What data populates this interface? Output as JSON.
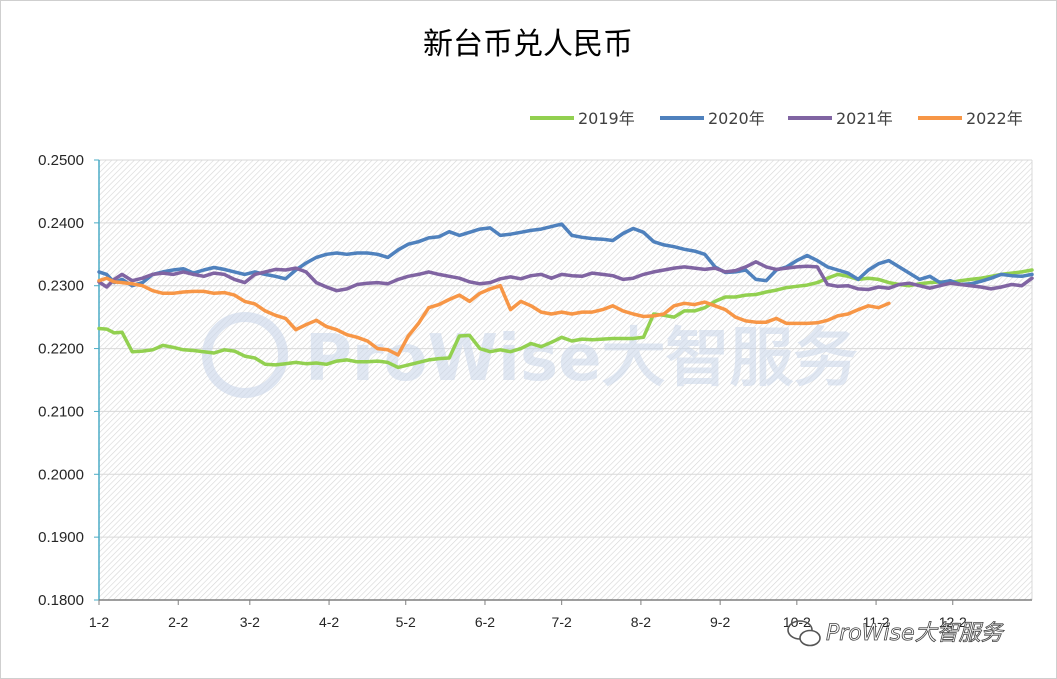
{
  "chart_data": {
    "type": "line",
    "title": "新台币兑人民币",
    "xlabel": "",
    "ylabel": "",
    "ylim": [
      0.18,
      0.25
    ],
    "yticks": [
      "0.2500",
      "0.2400",
      "0.2300",
      "0.2200",
      "0.2100",
      "0.2000",
      "0.1900",
      "0.1800"
    ],
    "ytick_values": [
      0.25,
      0.24,
      0.23,
      0.22,
      0.21,
      0.2,
      0.19,
      0.18
    ],
    "xticks": [
      "1-2",
      "2-2",
      "3-2",
      "4-2",
      "5-2",
      "6-2",
      "7-2",
      "8-2",
      "9-2",
      "10-2",
      "11-2",
      "12-2"
    ],
    "xtick_days": [
      1,
      32,
      60,
      91,
      121,
      152,
      182,
      213,
      244,
      274,
      305,
      335
    ],
    "xlim_days": [
      1,
      366
    ],
    "legend_position": "top-right",
    "grid": true,
    "series": [
      {
        "name": "2019年",
        "color": "#92d050",
        "x": [
          1,
          4,
          7,
          10,
          14,
          18,
          22,
          26,
          30,
          34,
          38,
          42,
          46,
          50,
          54,
          58,
          62,
          66,
          70,
          74,
          78,
          82,
          86,
          90,
          94,
          98,
          102,
          106,
          110,
          114,
          118,
          122,
          126,
          130,
          134,
          138,
          142,
          146,
          150,
          154,
          158,
          162,
          166,
          170,
          174,
          178,
          182,
          186,
          190,
          194,
          198,
          202,
          206,
          210,
          214,
          218,
          222,
          226,
          230,
          234,
          238,
          242,
          246,
          250,
          254,
          258,
          262,
          266,
          270,
          274,
          278,
          282,
          286,
          290,
          294,
          298,
          302,
          306,
          310,
          314,
          318,
          322,
          326,
          330,
          334,
          338,
          342,
          346,
          350,
          354,
          358,
          362,
          366
        ],
        "values": [
          0.2232,
          0.2231,
          0.2225,
          0.2226,
          0.2195,
          0.2196,
          0.2198,
          0.2205,
          0.2202,
          0.2198,
          0.2197,
          0.2195,
          0.2193,
          0.2198,
          0.2196,
          0.2188,
          0.2185,
          0.2175,
          0.2174,
          0.2176,
          0.2178,
          0.2176,
          0.2177,
          0.2175,
          0.218,
          0.2182,
          0.2179,
          0.2179,
          0.218,
          0.2178,
          0.217,
          0.2174,
          0.2178,
          0.2182,
          0.2184,
          0.2185,
          0.222,
          0.2221,
          0.22,
          0.2195,
          0.2198,
          0.2195,
          0.22,
          0.2208,
          0.2203,
          0.221,
          0.2218,
          0.2212,
          0.2215,
          0.2214,
          0.2215,
          0.2216,
          0.2216,
          0.2216,
          0.2218,
          0.2255,
          0.2253,
          0.225,
          0.226,
          0.226,
          0.2265,
          0.2275,
          0.2282,
          0.2282,
          0.2285,
          0.2286,
          0.229,
          0.2293,
          0.2297,
          0.2299,
          0.2301,
          0.2305,
          0.2312,
          0.2318,
          0.2315,
          0.231,
          0.2312,
          0.231,
          0.2305,
          0.2302,
          0.23,
          0.2303,
          0.2305,
          0.2306,
          0.2305,
          0.2308,
          0.231,
          0.2312,
          0.2315,
          0.2318,
          0.232,
          0.2322,
          0.2325
        ]
      },
      {
        "name": "2020年",
        "color": "#4f81bd",
        "x": [
          1,
          4,
          7,
          10,
          14,
          18,
          22,
          26,
          30,
          34,
          38,
          42,
          46,
          50,
          54,
          58,
          62,
          66,
          70,
          74,
          78,
          82,
          86,
          90,
          94,
          98,
          102,
          106,
          110,
          114,
          118,
          122,
          126,
          130,
          134,
          138,
          142,
          146,
          150,
          154,
          158,
          162,
          166,
          170,
          174,
          178,
          182,
          186,
          190,
          194,
          198,
          202,
          206,
          210,
          214,
          218,
          222,
          226,
          230,
          234,
          238,
          242,
          246,
          250,
          254,
          258,
          262,
          266,
          270,
          274,
          278,
          282,
          286,
          290,
          294,
          298,
          302,
          306,
          310,
          314,
          318,
          322,
          326,
          330,
          334,
          338,
          342,
          346,
          350,
          354,
          358,
          362,
          366
        ],
        "values": [
          0.2322,
          0.2318,
          0.2305,
          0.231,
          0.23,
          0.2305,
          0.2318,
          0.2322,
          0.2325,
          0.2327,
          0.232,
          0.2325,
          0.2329,
          0.2326,
          0.2322,
          0.2318,
          0.2322,
          0.2318,
          0.2315,
          0.2311,
          0.2325,
          0.2336,
          0.2345,
          0.235,
          0.2352,
          0.235,
          0.2352,
          0.2352,
          0.235,
          0.2345,
          0.2357,
          0.2366,
          0.237,
          0.2376,
          0.2378,
          0.2386,
          0.238,
          0.2385,
          0.239,
          0.2392,
          0.238,
          0.2382,
          0.2385,
          0.2388,
          0.239,
          0.2394,
          0.2398,
          0.238,
          0.2377,
          0.2375,
          0.2374,
          0.2372,
          0.2383,
          0.2391,
          0.2385,
          0.237,
          0.2365,
          0.2362,
          0.2358,
          0.2355,
          0.235,
          0.233,
          0.2321,
          0.2322,
          0.2325,
          0.231,
          0.2308,
          0.2325,
          0.233,
          0.234,
          0.2348,
          0.234,
          0.233,
          0.2325,
          0.232,
          0.231,
          0.2325,
          0.2335,
          0.234,
          0.233,
          0.232,
          0.231,
          0.2315,
          0.2305,
          0.2308,
          0.2302,
          0.2303,
          0.2307,
          0.2312,
          0.2318,
          0.2316,
          0.2315,
          0.2318
        ]
      },
      {
        "name": "2021年",
        "color": "#8064a2",
        "x": [
          1,
          4,
          7,
          10,
          14,
          18,
          22,
          26,
          30,
          34,
          38,
          42,
          46,
          50,
          54,
          58,
          62,
          66,
          70,
          74,
          78,
          82,
          86,
          90,
          94,
          98,
          102,
          106,
          110,
          114,
          118,
          122,
          126,
          130,
          134,
          138,
          142,
          146,
          150,
          154,
          158,
          162,
          166,
          170,
          174,
          178,
          182,
          186,
          190,
          194,
          198,
          202,
          206,
          210,
          214,
          218,
          222,
          226,
          230,
          234,
          238,
          242,
          246,
          250,
          254,
          258,
          262,
          266,
          270,
          274,
          278,
          282,
          286,
          290,
          294,
          298,
          302,
          306,
          310,
          314,
          318,
          322,
          326,
          330,
          334,
          338,
          342,
          346,
          350,
          354,
          358,
          362,
          366
        ],
        "values": [
          0.2306,
          0.2298,
          0.231,
          0.2318,
          0.2308,
          0.2312,
          0.2318,
          0.232,
          0.2318,
          0.2322,
          0.2318,
          0.2315,
          0.232,
          0.2318,
          0.231,
          0.2305,
          0.2318,
          0.2322,
          0.2326,
          0.2325,
          0.2328,
          0.2322,
          0.2305,
          0.2298,
          0.2292,
          0.2295,
          0.2302,
          0.2304,
          0.2305,
          0.2303,
          0.231,
          0.2315,
          0.2318,
          0.2322,
          0.2318,
          0.2315,
          0.2312,
          0.2306,
          0.2303,
          0.2305,
          0.2311,
          0.2314,
          0.2311,
          0.2316,
          0.2318,
          0.2312,
          0.2318,
          0.2316,
          0.2315,
          0.232,
          0.2318,
          0.2316,
          0.231,
          0.2312,
          0.2318,
          0.2322,
          0.2325,
          0.2328,
          0.233,
          0.2328,
          0.2326,
          0.2328,
          0.2322,
          0.2324,
          0.233,
          0.2338,
          0.233,
          0.2326,
          0.2328,
          0.233,
          0.2331,
          0.233,
          0.2302,
          0.2299,
          0.23,
          0.2295,
          0.2294,
          0.2298,
          0.2296,
          0.2302,
          0.2304,
          0.23,
          0.2296,
          0.23,
          0.2304,
          0.2302,
          0.23,
          0.2298,
          0.2295,
          0.2298,
          0.2302,
          0.23,
          0.2312
        ]
      },
      {
        "name": "2022年",
        "color": "#f79646",
        "x": [
          1,
          4,
          7,
          10,
          14,
          18,
          22,
          26,
          30,
          34,
          38,
          42,
          46,
          50,
          54,
          58,
          62,
          66,
          70,
          74,
          78,
          82,
          86,
          90,
          94,
          98,
          102,
          106,
          110,
          114,
          118,
          122,
          126,
          130,
          134,
          138,
          142,
          146,
          150,
          154,
          158,
          162,
          166,
          170,
          174,
          178,
          182,
          186,
          190,
          194,
          198,
          202,
          206,
          210,
          214,
          218,
          222,
          226,
          230,
          234,
          238,
          242,
          246,
          250,
          254,
          258,
          262,
          266,
          270,
          274,
          278,
          282,
          286,
          290,
          294,
          298,
          302,
          306,
          310
        ],
        "values": [
          0.2308,
          0.2312,
          0.2306,
          0.2305,
          0.2303,
          0.23,
          0.2292,
          0.2288,
          0.2288,
          0.229,
          0.2291,
          0.2291,
          0.2288,
          0.2289,
          0.2285,
          0.2275,
          0.2271,
          0.226,
          0.2253,
          0.2248,
          0.223,
          0.2238,
          0.2245,
          0.2235,
          0.223,
          0.2222,
          0.2218,
          0.2212,
          0.22,
          0.2198,
          0.219,
          0.222,
          0.224,
          0.2265,
          0.227,
          0.2278,
          0.2285,
          0.2275,
          0.2288,
          0.2295,
          0.23,
          0.2262,
          0.2275,
          0.2268,
          0.2258,
          0.2255,
          0.2258,
          0.2255,
          0.2258,
          0.2258,
          0.2262,
          0.2268,
          0.226,
          0.2255,
          0.2251,
          0.2252,
          0.2255,
          0.2268,
          0.2272,
          0.227,
          0.2274,
          0.2268,
          0.2262,
          0.225,
          0.2244,
          0.2242,
          0.2242,
          0.2248,
          0.224,
          0.224,
          0.224,
          0.2241,
          0.2245,
          0.2252,
          0.2255,
          0.2262,
          0.2268,
          0.2265,
          0.2272
        ]
      }
    ]
  },
  "watermark": {
    "brand_text": "ProWise大智服务",
    "corner_text": "ProWise大智服务",
    "wechat_icon": "wechat-icon"
  }
}
